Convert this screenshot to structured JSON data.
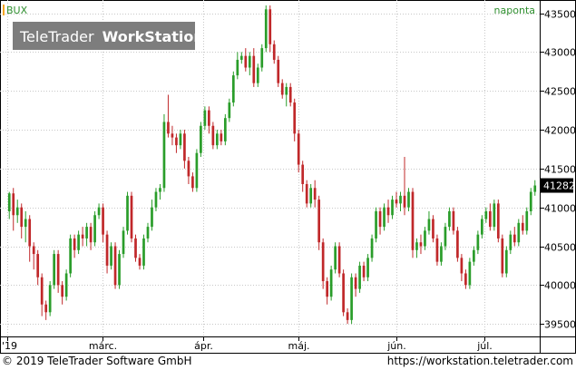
{
  "header": {
    "symbol": "BUX",
    "frequency": "naponta"
  },
  "watermark": {
    "brand": "TeleTrader",
    "product": "WorkStation"
  },
  "footer": {
    "copyright": "© 2019 TeleTrader Software GmbH",
    "url": "https://workstation.teletrader.com"
  },
  "colors": {
    "up": "#2a9d2a",
    "down": "#c0282a",
    "grid": "#c8c8c8",
    "last_price_box": "#000000"
  },
  "chart_data": {
    "type": "candlestick",
    "title": "BUX",
    "frequency": "naponta",
    "ylim": [
      39350,
      43600
    ],
    "y_ticks": [
      39500,
      40000,
      40500,
      41000,
      41500,
      42000,
      42500,
      43000,
      43500
    ],
    "x_tick_labels": [
      "'19",
      "márc.",
      "ápr.",
      "máj.",
      "jún.",
      "júl."
    ],
    "last_price": "41282",
    "candles": [
      [
        40950,
        41180,
        40850,
        41200
      ],
      [
        41180,
        40900,
        40700,
        41250
      ],
      [
        40900,
        41000,
        40800,
        41100
      ],
      [
        41000,
        40750,
        40600,
        41050
      ],
      [
        40750,
        40850,
        40550,
        40950
      ],
      [
        40850,
        40500,
        40300,
        40900
      ],
      [
        40500,
        40400,
        40200,
        40550
      ],
      [
        40400,
        40100,
        40000,
        40450
      ],
      [
        40100,
        39750,
        39600,
        40150
      ],
      [
        39750,
        39650,
        39550,
        39800
      ],
      [
        39650,
        40000,
        39600,
        40050
      ],
      [
        40000,
        40400,
        39950,
        40450
      ],
      [
        40400,
        40000,
        39900,
        40450
      ],
      [
        40000,
        39850,
        39750,
        40050
      ],
      [
        39850,
        40150,
        39800,
        40200
      ],
      [
        40150,
        40600,
        40100,
        40650
      ],
      [
        40600,
        40450,
        40350,
        40650
      ],
      [
        40450,
        40650,
        40400,
        40700
      ],
      [
        40650,
        40600,
        40500,
        40750
      ],
      [
        40600,
        40750,
        40500,
        40800
      ],
      [
        40750,
        40550,
        40450,
        40800
      ],
      [
        40550,
        40900,
        40500,
        40950
      ],
      [
        40900,
        41000,
        40850,
        41050
      ],
      [
        41000,
        40650,
        40550,
        41050
      ],
      [
        40650,
        40250,
        40150,
        40700
      ],
      [
        40250,
        40500,
        40200,
        40550
      ],
      [
        40500,
        40000,
        39950,
        40550
      ],
      [
        40000,
        40400,
        39950,
        40450
      ],
      [
        40400,
        40700,
        40350,
        40750
      ],
      [
        40700,
        41150,
        40650,
        41200
      ],
      [
        41150,
        40600,
        40550,
        41200
      ],
      [
        40600,
        40350,
        40300,
        40650
      ],
      [
        40350,
        40250,
        40200,
        40400
      ],
      [
        40250,
        40600,
        40200,
        40650
      ],
      [
        40600,
        40750,
        40550,
        40800
      ],
      [
        40750,
        41000,
        40700,
        41100
      ],
      [
        41000,
        41200,
        40950,
        41250
      ],
      [
        41200,
        41250,
        41100,
        41300
      ],
      [
        41250,
        42100,
        41200,
        42200
      ],
      [
        42100,
        41950,
        41900,
        42450
      ],
      [
        41950,
        41900,
        41800,
        42050
      ],
      [
        41900,
        41800,
        41700,
        41950
      ],
      [
        41800,
        41950,
        41750,
        42000
      ],
      [
        41950,
        41600,
        41500,
        42000
      ],
      [
        41600,
        41400,
        41300,
        41650
      ],
      [
        41400,
        41250,
        41200,
        41450
      ],
      [
        41250,
        41700,
        41200,
        41750
      ],
      [
        41700,
        42050,
        41650,
        42100
      ],
      [
        42050,
        42250,
        42000,
        42300
      ],
      [
        42250,
        42050,
        41950,
        42300
      ],
      [
        42050,
        41800,
        41750,
        42100
      ],
      [
        41800,
        41950,
        41750,
        42000
      ],
      [
        41950,
        41850,
        41800,
        42000
      ],
      [
        41850,
        42150,
        41800,
        42200
      ],
      [
        42150,
        42350,
        42100,
        42400
      ],
      [
        42350,
        42700,
        42300,
        42750
      ],
      [
        42700,
        42900,
        42650,
        43000
      ],
      [
        42900,
        42950,
        42850,
        43000
      ],
      [
        42950,
        42800,
        42750,
        43050
      ],
      [
        42800,
        42950,
        42700,
        43000
      ],
      [
        42950,
        42600,
        42550,
        43050
      ],
      [
        42600,
        42800,
        42550,
        42850
      ],
      [
        42800,
        43050,
        42750,
        43100
      ],
      [
        43050,
        43550,
        43000,
        43600
      ],
      [
        43550,
        43100,
        43000,
        43600
      ],
      [
        43100,
        42900,
        42850,
        43150
      ],
      [
        42900,
        42600,
        42550,
        42950
      ],
      [
        42600,
        42450,
        42400,
        42650
      ],
      [
        42450,
        42550,
        42300,
        42600
      ],
      [
        42550,
        42350,
        42300,
        42600
      ],
      [
        42350,
        41950,
        41850,
        42400
      ],
      [
        41950,
        41550,
        41450,
        42000
      ],
      [
        41550,
        41300,
        41200,
        41600
      ],
      [
        41300,
        41050,
        41000,
        41350
      ],
      [
        41050,
        41250,
        41000,
        41300
      ],
      [
        41250,
        41100,
        41000,
        41350
      ],
      [
        41100,
        40550,
        40450,
        41150
      ],
      [
        40550,
        40050,
        39950,
        40600
      ],
      [
        40050,
        39850,
        39750,
        40100
      ],
      [
        39850,
        40200,
        39800,
        40250
      ],
      [
        40200,
        40500,
        40150,
        40550
      ],
      [
        40500,
        40150,
        40100,
        40550
      ],
      [
        40150,
        39650,
        39600,
        40200
      ],
      [
        39650,
        39550,
        39500,
        39700
      ],
      [
        39550,
        40100,
        39500,
        40150
      ],
      [
        40100,
        39950,
        39850,
        40150
      ],
      [
        39950,
        40250,
        39900,
        40300
      ],
      [
        40250,
        40100,
        40050,
        40300
      ],
      [
        40100,
        40350,
        40050,
        40400
      ],
      [
        40350,
        40600,
        40300,
        40650
      ],
      [
        40600,
        40950,
        40550,
        41000
      ],
      [
        40950,
        40750,
        40650,
        41000
      ],
      [
        40750,
        41000,
        40700,
        41050
      ],
      [
        41000,
        40900,
        40800,
        41100
      ],
      [
        40900,
        41100,
        40850,
        41150
      ],
      [
        41100,
        41050,
        41000,
        41200
      ],
      [
        41050,
        41150,
        40950,
        41200
      ],
      [
        41150,
        41000,
        40900,
        41650
      ],
      [
        41000,
        41200,
        40950,
        41250
      ],
      [
        41200,
        40450,
        40350,
        41250
      ],
      [
        40450,
        40550,
        40350,
        40600
      ],
      [
        40550,
        40500,
        40400,
        40650
      ],
      [
        40500,
        40700,
        40450,
        40750
      ],
      [
        40700,
        40850,
        40650,
        40950
      ],
      [
        40850,
        40600,
        40550,
        40900
      ],
      [
        40600,
        40300,
        40250,
        40650
      ],
      [
        40300,
        40500,
        40250,
        40550
      ],
      [
        40500,
        40750,
        40450,
        40800
      ],
      [
        40750,
        40950,
        40700,
        41000
      ],
      [
        40950,
        40700,
        40650,
        41000
      ],
      [
        40700,
        40350,
        40300,
        40750
      ],
      [
        40350,
        40150,
        40050,
        40400
      ],
      [
        40150,
        40000,
        39950,
        40200
      ],
      [
        40000,
        40300,
        39950,
        40350
      ],
      [
        40300,
        40450,
        40250,
        40500
      ],
      [
        40450,
        40650,
        40400,
        40700
      ],
      [
        40650,
        40850,
        40600,
        40900
      ],
      [
        40850,
        40950,
        40800,
        41000
      ],
      [
        40950,
        40750,
        40700,
        41050
      ],
      [
        40750,
        41050,
        40700,
        41100
      ],
      [
        41050,
        40600,
        40550,
        41100
      ],
      [
        40600,
        40150,
        40100,
        40650
      ],
      [
        40150,
        40450,
        40100,
        40500
      ],
      [
        40450,
        40650,
        40400,
        40700
      ],
      [
        40650,
        40550,
        40500,
        40750
      ],
      [
        40550,
        40800,
        40500,
        40850
      ],
      [
        40800,
        40700,
        40650,
        40900
      ],
      [
        40700,
        40950,
        40650,
        41000
      ],
      [
        40950,
        41200,
        40900,
        41250
      ],
      [
        41200,
        41282,
        41150,
        41350
      ]
    ]
  }
}
